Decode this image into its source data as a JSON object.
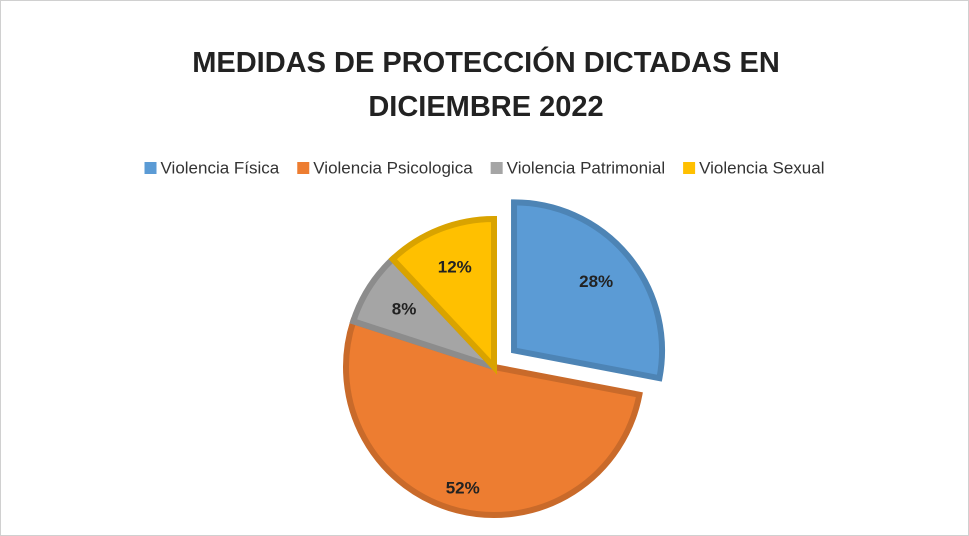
{
  "chart_data": {
    "type": "pie",
    "title": "MEDIDAS DE PROTECCIÓN DICTADAS EN DICIEMBRE 2022",
    "categories": [
      "Violencia Física",
      "Violencia Psicologica",
      "Violencia Patrimonial",
      "Violencia Sexual"
    ],
    "values": [
      28,
      52,
      8,
      12
    ],
    "value_labels": [
      "28%",
      "52%",
      "8%",
      "12%"
    ],
    "colors": [
      "#5b9bd5",
      "#ed7d31",
      "#a5a5a5",
      "#ffc000"
    ],
    "legend": "top"
  }
}
